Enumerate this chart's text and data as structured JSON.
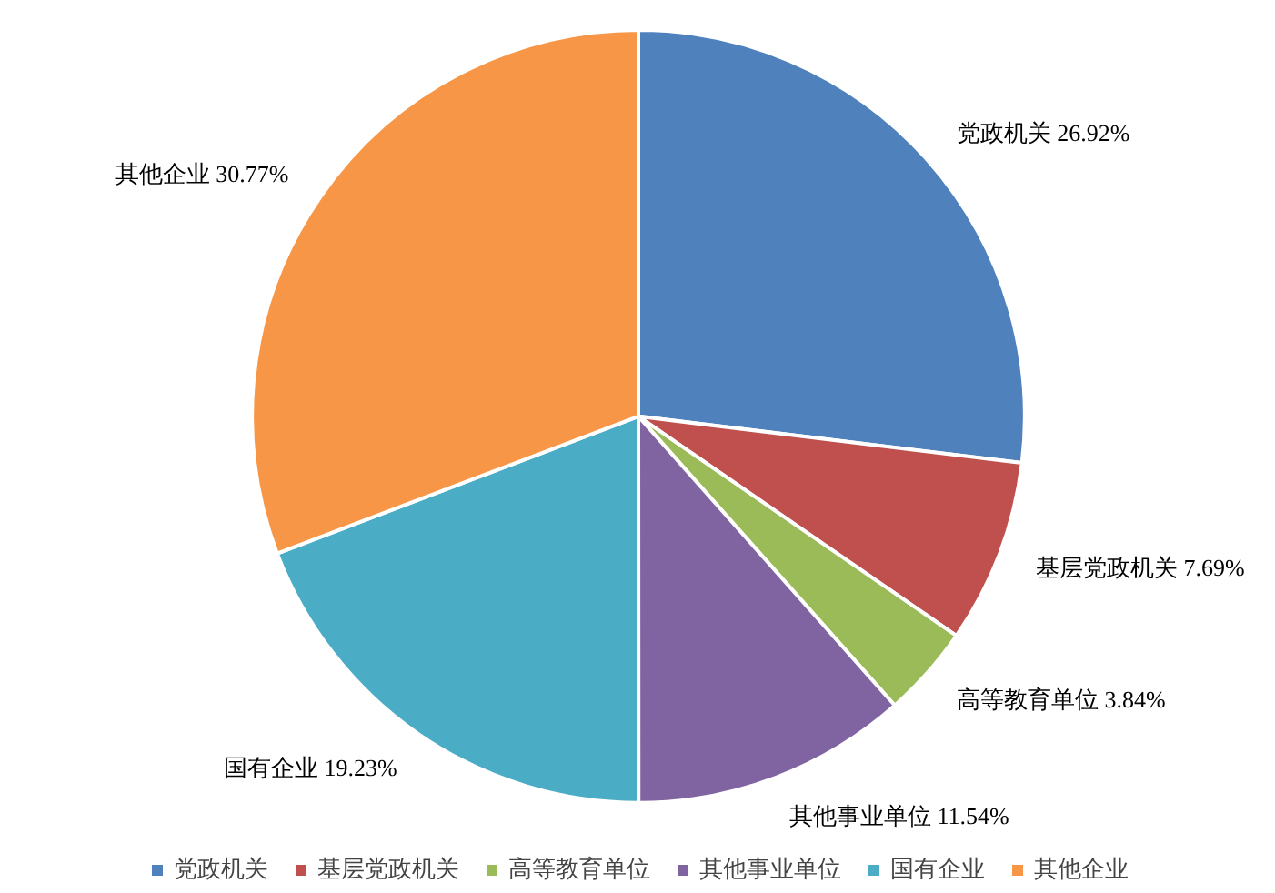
{
  "chart_data": {
    "type": "pie",
    "categories": [
      "党政机关",
      "基层党政机关",
      "高等教育单位",
      "其他事业单位",
      "国有企业",
      "其他企业"
    ],
    "values": [
      26.92,
      7.69,
      3.84,
      11.54,
      19.23,
      30.77
    ],
    "colors": [
      "#4f81bd",
      "#c0504d",
      "#9bbb59",
      "#8064a2",
      "#4bacc6",
      "#f79646"
    ],
    "value_labels": [
      "党政机关 26.92%",
      "基层党政机关 7.69%",
      "高等教育单位 3.84%",
      "其他事业单位 11.54%",
      "国有企业 19.23%",
      "其他企业 30.77%"
    ],
    "legend": "bottom"
  }
}
